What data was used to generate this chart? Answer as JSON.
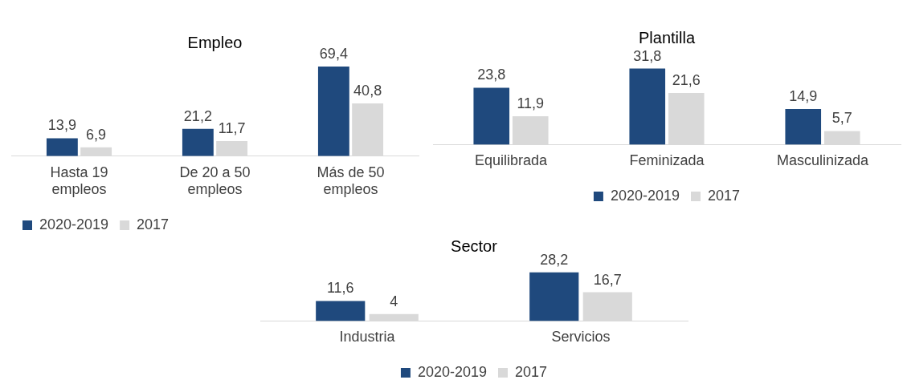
{
  "chart_data": [
    {
      "type": "bar",
      "title": "Empleo",
      "categories": [
        "Hasta 19 empleos",
        "De 20 a 50 empleos",
        "Más de 50 empleos"
      ],
      "series": [
        {
          "name": "2020-2019",
          "color": "#1f497d",
          "values": [
            13.9,
            21.2,
            69.4
          ],
          "value_labels": [
            "13,9",
            "21,2",
            "69,4"
          ]
        },
        {
          "name": "2017",
          "color": "#d9d9d9",
          "values": [
            6.9,
            11.7,
            40.8
          ],
          "value_labels": [
            "6,9",
            "11,7",
            "40,8"
          ]
        }
      ],
      "legend": "bottom left",
      "tick_labels": "x",
      "grid": false
    },
    {
      "type": "bar",
      "title": "Plantilla",
      "categories": [
        "Equilibrada",
        "Feminizada",
        "Masculinizada"
      ],
      "series": [
        {
          "name": "2020-2019",
          "color": "#1f497d",
          "values": [
            23.8,
            31.8,
            14.9
          ],
          "value_labels": [
            "23,8",
            "31,8",
            "14,9"
          ]
        },
        {
          "name": "2017",
          "color": "#d9d9d9",
          "values": [
            11.9,
            21.6,
            5.7
          ],
          "value_labels": [
            "11,9",
            "21,6",
            "5,7"
          ]
        }
      ],
      "legend": "bottom",
      "tick_labels": "x",
      "grid": false
    },
    {
      "type": "bar",
      "title": "Sector",
      "categories": [
        "Industria",
        "Servicios"
      ],
      "series": [
        {
          "name": "2020-2019",
          "color": "#1f497d",
          "values": [
            11.6,
            28.2
          ],
          "value_labels": [
            "11,6",
            "28,2"
          ]
        },
        {
          "name": "2017",
          "color": "#d9d9d9",
          "values": [
            4,
            16.7
          ],
          "value_labels": [
            "4",
            "16,7"
          ]
        }
      ],
      "legend": "bottom",
      "tick_labels": "x",
      "grid": false
    }
  ]
}
